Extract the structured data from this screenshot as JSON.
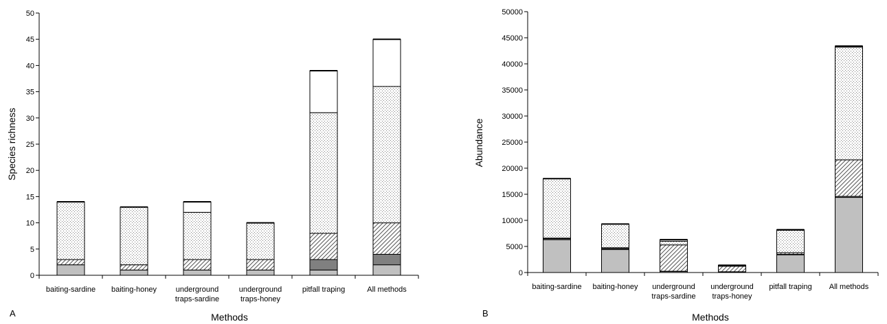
{
  "chart_data": [
    {
      "type": "bar",
      "stacked": true,
      "panel_label": "A",
      "xlabel": "Methods",
      "ylabel": "Species richness",
      "ylim": [
        0,
        50
      ],
      "yticks": [
        0,
        5,
        10,
        15,
        20,
        25,
        30,
        35,
        40,
        45,
        50
      ],
      "categories": [
        [
          "baiting-sardine"
        ],
        [
          "baiting-honey"
        ],
        [
          "underground",
          "traps-sardine"
        ],
        [
          "underground",
          "traps-honey"
        ],
        [
          "pitfall traping"
        ],
        [
          "All methods"
        ]
      ],
      "series": [
        {
          "pattern": "solid-gray",
          "color": "#c0c0c0",
          "values": [
            2,
            1,
            1,
            1,
            1,
            2
          ]
        },
        {
          "pattern": "solid-dark-gray",
          "color": "#808080",
          "values": [
            0,
            0,
            0,
            0,
            2,
            2
          ]
        },
        {
          "pattern": "diagonal-hatch",
          "color": "#ffffff",
          "values": [
            1,
            1,
            2,
            2,
            5,
            6
          ]
        },
        {
          "pattern": "dotted",
          "color": "#ffffff",
          "values": [
            11,
            11,
            9,
            7,
            23,
            26
          ]
        },
        {
          "pattern": "white",
          "color": "#ffffff",
          "values": [
            0,
            0,
            2,
            0,
            8,
            9
          ]
        }
      ],
      "grid": false,
      "legend": "none"
    },
    {
      "type": "bar",
      "stacked": true,
      "panel_label": "B",
      "xlabel": "Methods",
      "ylabel": "Abundance",
      "ylim": [
        0,
        50000
      ],
      "yticks": [
        0,
        5000,
        10000,
        15000,
        20000,
        25000,
        30000,
        35000,
        40000,
        45000,
        50000
      ],
      "categories": [
        [
          "baiting-sardine"
        ],
        [
          "baiting-honey"
        ],
        [
          "underground",
          "traps-sardine"
        ],
        [
          "underground",
          "traps-honey"
        ],
        [
          "pitfall traping"
        ],
        [
          "All methods"
        ]
      ],
      "series": [
        {
          "pattern": "solid-gray",
          "color": "#c0c0c0",
          "values": [
            6300,
            4400,
            200,
            100,
            3400,
            14400
          ]
        },
        {
          "pattern": "solid-dark-gray",
          "color": "#808080",
          "values": [
            200,
            200,
            50,
            50,
            100,
            200
          ]
        },
        {
          "pattern": "diagonal-hatch",
          "color": "#ffffff",
          "values": [
            100,
            150,
            5050,
            1050,
            300,
            7000
          ]
        },
        {
          "pattern": "dotted",
          "color": "#ffffff",
          "values": [
            11400,
            4550,
            700,
            200,
            4300,
            21600
          ]
        },
        {
          "pattern": "white",
          "color": "#ffffff",
          "values": [
            0,
            0,
            300,
            0,
            100,
            200
          ]
        }
      ],
      "grid": false,
      "legend": "none"
    }
  ]
}
